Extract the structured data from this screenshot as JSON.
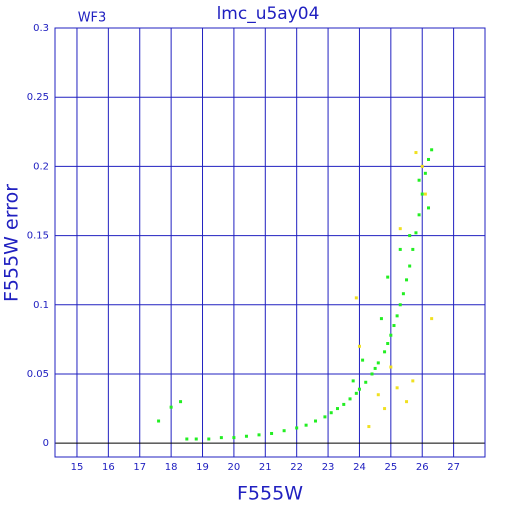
{
  "chart_data": {
    "type": "scatter",
    "title": "lmc_u5ay04",
    "subtitle": "WF3",
    "x_label": "F555W",
    "y_label": "F555W error",
    "xlim": [
      14.3,
      28
    ],
    "ylim": [
      -0.01,
      0.3
    ],
    "xticks": [
      15,
      16,
      17,
      18,
      19,
      20,
      21,
      22,
      23,
      24,
      25,
      26,
      27
    ],
    "yticks": [
      0,
      0.05,
      0.1,
      0.15,
      0.2,
      0.25,
      0.3
    ],
    "grid": true,
    "series": [
      {
        "color": "#22ee22",
        "x": [
          17.6,
          18.0,
          18.3,
          18.5,
          18.8,
          19.2,
          19.6,
          20.0,
          20.4,
          20.8,
          21.2,
          21.6,
          22.0,
          22.3,
          22.6,
          22.9,
          23.1,
          23.3,
          23.5,
          23.7,
          23.9,
          24.0,
          24.2,
          24.4,
          24.5,
          24.6,
          24.8,
          24.9,
          25.0,
          25.1,
          25.2,
          25.3,
          25.4,
          25.5,
          25.6,
          25.7,
          25.8,
          25.9,
          26.0,
          26.1,
          26.2,
          26.3,
          24.1,
          24.7,
          25.3,
          25.6,
          25.9,
          26.2,
          23.8,
          24.9
        ],
        "values": [
          0.016,
          0.026,
          0.03,
          0.003,
          0.003,
          0.003,
          0.004,
          0.004,
          0.005,
          0.006,
          0.007,
          0.009,
          0.011,
          0.013,
          0.016,
          0.019,
          0.022,
          0.025,
          0.028,
          0.032,
          0.036,
          0.039,
          0.044,
          0.05,
          0.054,
          0.058,
          0.066,
          0.072,
          0.078,
          0.085,
          0.092,
          0.1,
          0.108,
          0.118,
          0.128,
          0.14,
          0.152,
          0.165,
          0.18,
          0.195,
          0.205,
          0.212,
          0.06,
          0.09,
          0.14,
          0.15,
          0.19,
          0.17,
          0.045,
          0.12
        ]
      },
      {
        "color": "#f0e020",
        "x": [
          23.9,
          24.0,
          24.3,
          24.6,
          25.0,
          25.2,
          25.5,
          25.7,
          26.0,
          26.3,
          25.3,
          25.8,
          26.1,
          24.8
        ],
        "values": [
          0.105,
          0.07,
          0.012,
          0.035,
          0.055,
          0.04,
          0.03,
          0.045,
          0.2,
          0.09,
          0.155,
          0.21,
          0.18,
          0.025
        ]
      }
    ]
  }
}
